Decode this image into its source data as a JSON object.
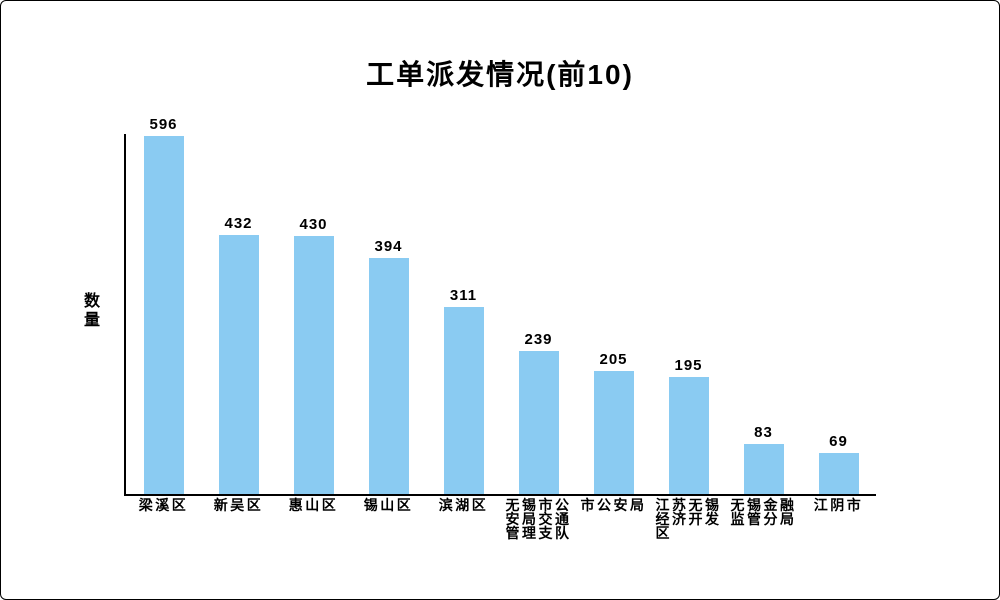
{
  "chart_data": {
    "type": "bar",
    "title": "工单派发情况(前10)",
    "xlabel": "",
    "ylabel": "数量",
    "categories": [
      "梁溪区",
      "新吴区",
      "惠山区",
      "锡山区",
      "滨湖区",
      "无锡市公安局交通管理支队",
      "市公安局",
      "江苏无锡经济开发区",
      "无锡金融监管分局",
      "江阴市"
    ],
    "tick_label_lines": [
      [
        "梁溪区"
      ],
      [
        "新吴区"
      ],
      [
        "惠山区"
      ],
      [
        "锡山区"
      ],
      [
        "滨湖区"
      ],
      [
        "无锡市公",
        "安局交通",
        "管理支队"
      ],
      [
        "市公安局"
      ],
      [
        "江苏无锡",
        "经济开发",
        "区"
      ],
      [
        "无锡金融",
        "监管分局"
      ],
      [
        "江阴市"
      ]
    ],
    "values": [
      596,
      432,
      430,
      394,
      311,
      239,
      205,
      195,
      83,
      69
    ],
    "ylim": [
      0,
      600
    ],
    "grid": false,
    "legend_position": "none",
    "bar_color": "#8ACBF2",
    "axis_color": "#000000",
    "text_color": "#000000",
    "background_color": "#FFFFFF"
  }
}
